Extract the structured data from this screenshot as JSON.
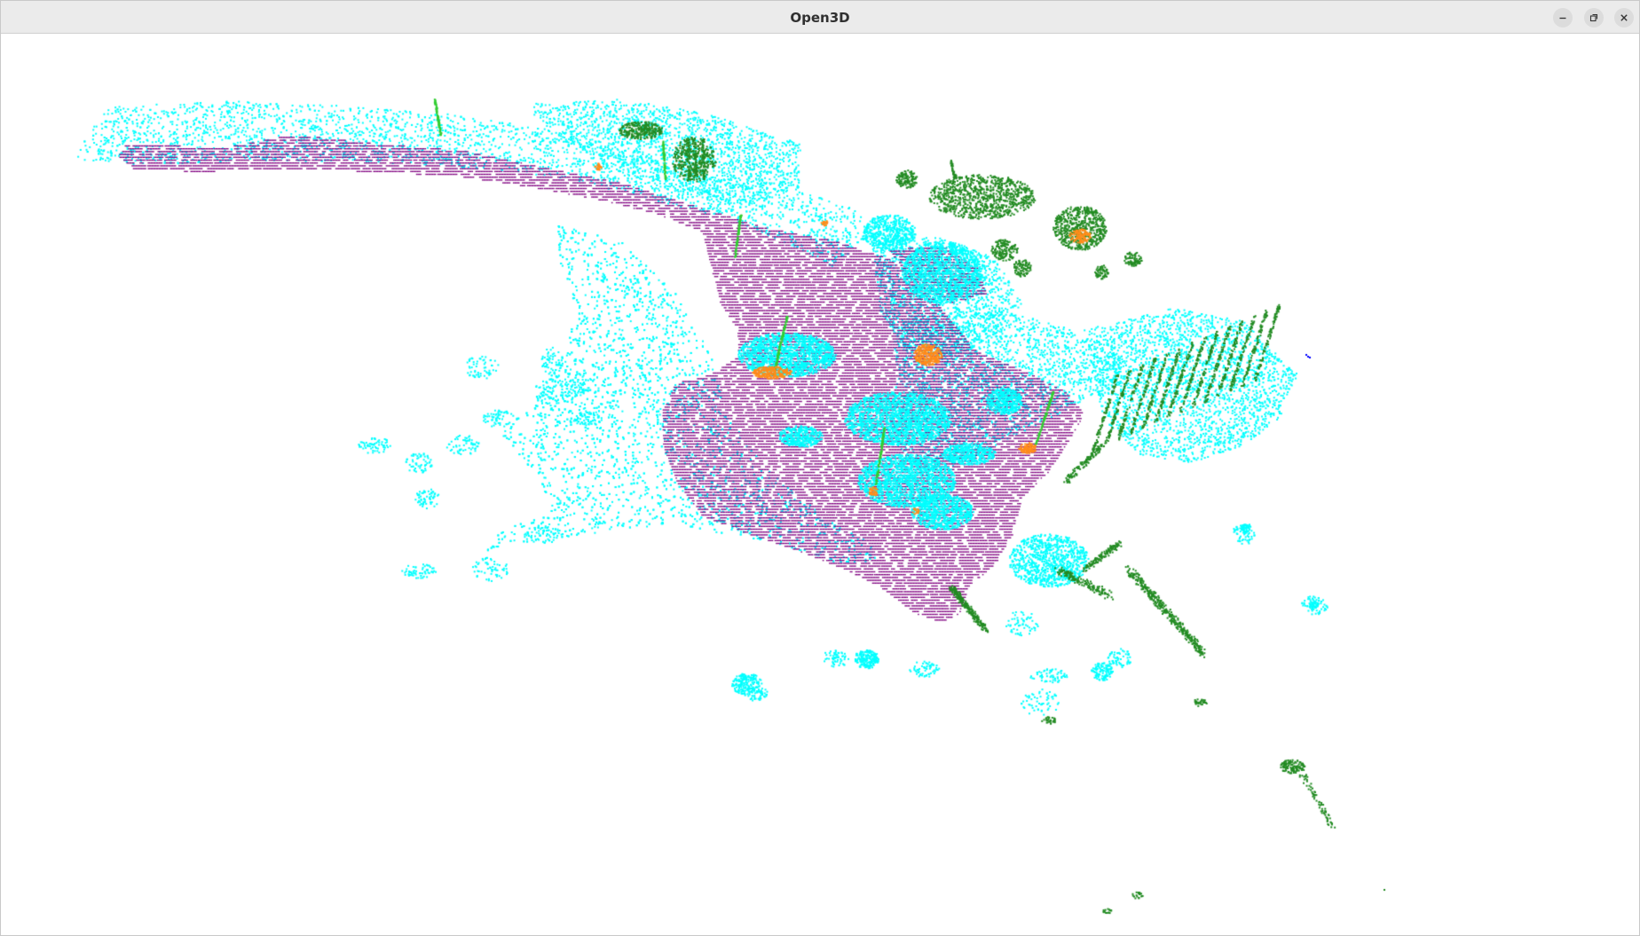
{
  "window": {
    "title": "Open3D",
    "controls": [
      {
        "name": "minimize-button",
        "icon": "minimize-icon"
      },
      {
        "name": "maximize-button",
        "icon": "maximize-icon"
      },
      {
        "name": "close-button",
        "icon": "close-icon"
      }
    ]
  },
  "viewport": {
    "background": "#ffffff",
    "point_cloud_colors": {
      "road": "#800080",
      "sidewalk_terrain": "#00ffff",
      "vegetation": "#228b22",
      "pole": "#32cd32",
      "traffic_sign": "#ff8c1a",
      "marker": "#0000ff"
    }
  }
}
